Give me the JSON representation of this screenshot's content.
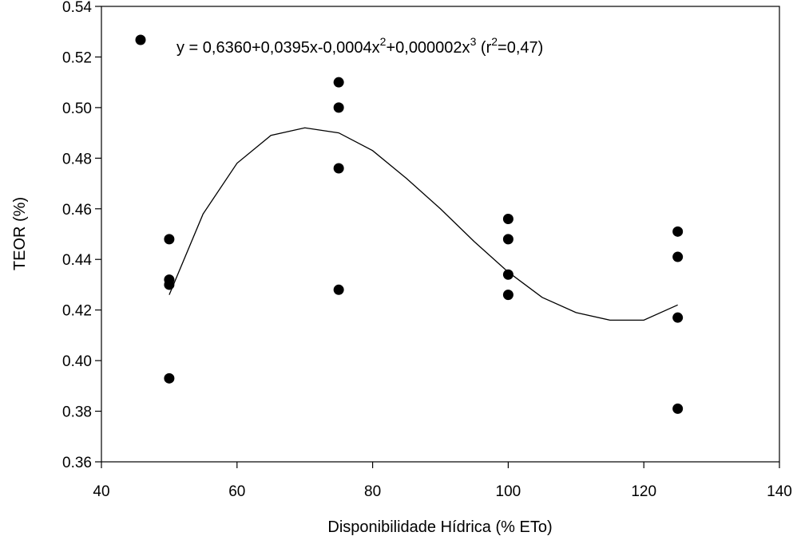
{
  "chart_data": {
    "type": "scatter",
    "title": "",
    "xlabel": "Disponibilidade Hídrica (% ETo)",
    "ylabel": "TEOR (%)",
    "xlim": [
      40,
      140
    ],
    "ylim": [
      0.36,
      0.54
    ],
    "x_ticks": [
      "40",
      "60",
      "80",
      "100",
      "120",
      "140"
    ],
    "y_ticks": [
      "0.36",
      "0.38",
      "0.40",
      "0.42",
      "0.44",
      "0.46",
      "0.48",
      "0.50",
      "0.52",
      "0.54"
    ],
    "grid": false,
    "legend_position": "top-left",
    "series": [
      {
        "marker": "filled-circle",
        "color": "#000000",
        "points": [
          {
            "x": 50,
            "y": 0.448
          },
          {
            "x": 50,
            "y": 0.432
          },
          {
            "x": 50,
            "y": 0.43
          },
          {
            "x": 50,
            "y": 0.393
          },
          {
            "x": 75,
            "y": 0.51
          },
          {
            "x": 75,
            "y": 0.5
          },
          {
            "x": 75,
            "y": 0.476
          },
          {
            "x": 75,
            "y": 0.428
          },
          {
            "x": 100,
            "y": 0.456
          },
          {
            "x": 100,
            "y": 0.448
          },
          {
            "x": 100,
            "y": 0.434
          },
          {
            "x": 100,
            "y": 0.426
          },
          {
            "x": 125,
            "y": 0.451
          },
          {
            "x": 125,
            "y": 0.441
          },
          {
            "x": 125,
            "y": 0.417
          },
          {
            "x": 125,
            "y": 0.381
          }
        ]
      }
    ],
    "fit_curve": {
      "type": "polynomial-cubic",
      "x_range": [
        50,
        125
      ],
      "curve_points": [
        {
          "x": 50,
          "y": 0.426
        },
        {
          "x": 55,
          "y": 0.458
        },
        {
          "x": 60,
          "y": 0.478
        },
        {
          "x": 65,
          "y": 0.489
        },
        {
          "x": 70,
          "y": 0.492
        },
        {
          "x": 75,
          "y": 0.49
        },
        {
          "x": 80,
          "y": 0.483
        },
        {
          "x": 85,
          "y": 0.472
        },
        {
          "x": 90,
          "y": 0.46
        },
        {
          "x": 95,
          "y": 0.447
        },
        {
          "x": 100,
          "y": 0.435
        },
        {
          "x": 105,
          "y": 0.425
        },
        {
          "x": 110,
          "y": 0.419
        },
        {
          "x": 115,
          "y": 0.416
        },
        {
          "x": 120,
          "y": 0.416
        },
        {
          "x": 125,
          "y": 0.422
        }
      ]
    },
    "legend": {
      "eq_part1": "y = 0,6360+0,0395x-0,0004x",
      "exp_a": "2",
      "eq_part2": "+0,000002x",
      "exp_b": "3",
      "eq_part3": " (r",
      "exp_c": "2",
      "eq_part4": "=0,47)"
    }
  }
}
